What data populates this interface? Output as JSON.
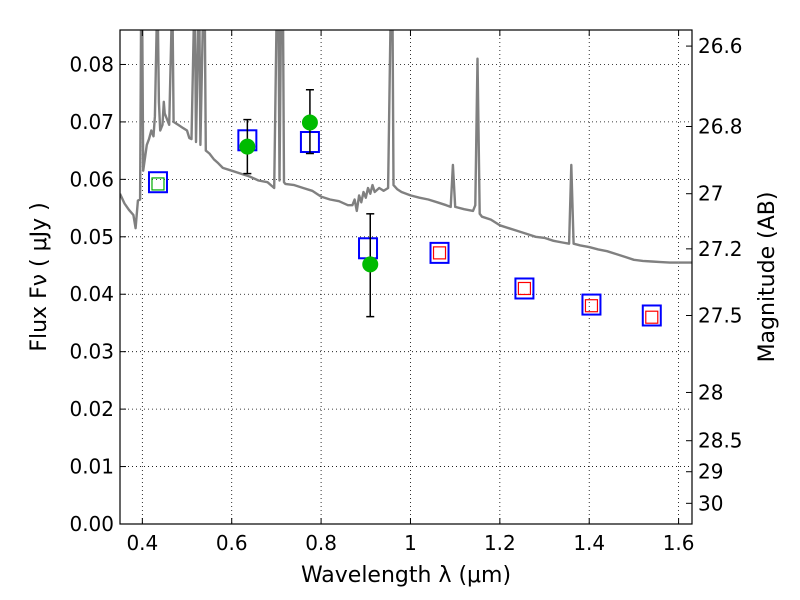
{
  "chart_data": {
    "type": "scatter",
    "xlabel": "Wavelength  λ (μm)",
    "ylabel": "Flux  Fν  ( μJy )",
    "y2label": "Magnitude (AB)",
    "xlim": [
      0.35,
      1.63
    ],
    "ylim": [
      0.0,
      0.086
    ],
    "grid": true,
    "x_ticks": [
      0.4,
      0.6,
      0.8,
      1.0,
      1.2,
      1.4,
      1.6
    ],
    "x_tick_labels": [
      "0.4",
      "0.6",
      "0.8",
      "1",
      "1.2",
      "1.4",
      "1.6"
    ],
    "y_ticks": [
      0.0,
      0.01,
      0.02,
      0.03,
      0.04,
      0.05,
      0.06,
      0.07,
      0.08
    ],
    "y_tick_labels": [
      "0.00",
      "0.01",
      "0.02",
      "0.03",
      "0.04",
      "0.05",
      "0.06",
      "0.07",
      "0.08"
    ],
    "y2_ticks": [
      {
        "label": "26.6",
        "flux": 0.0832
      },
      {
        "label": "26.8",
        "flux": 0.0692
      },
      {
        "label": "27",
        "flux": 0.0575
      },
      {
        "label": "27.2",
        "flux": 0.0479
      },
      {
        "label": "27.5",
        "flux": 0.0363
      },
      {
        "label": "28",
        "flux": 0.0229
      },
      {
        "label": "28.5",
        "flux": 0.0145
      },
      {
        "label": "29",
        "flux": 0.0091
      },
      {
        "label": "30",
        "flux": 0.0036
      }
    ],
    "series": [
      {
        "kind": "model_spectrum",
        "color": "#808080",
        "points": [
          [
            0.35,
            0.0575
          ],
          [
            0.36,
            0.0558
          ],
          [
            0.37,
            0.0547
          ],
          [
            0.38,
            0.0538
          ],
          [
            0.385,
            0.0515
          ],
          [
            0.39,
            0.0563
          ],
          [
            0.395,
            0.0565
          ],
          [
            0.397,
            0.086
          ],
          [
            0.4,
            0.086
          ],
          [
            0.402,
            0.0615
          ],
          [
            0.41,
            0.066
          ],
          [
            0.415,
            0.067
          ],
          [
            0.42,
            0.0685
          ],
          [
            0.425,
            0.0675
          ],
          [
            0.428,
            0.071
          ],
          [
            0.432,
            0.086
          ],
          [
            0.435,
            0.086
          ],
          [
            0.437,
            0.0735
          ],
          [
            0.44,
            0.0685
          ],
          [
            0.445,
            0.0695
          ],
          [
            0.448,
            0.0735
          ],
          [
            0.45,
            0.0715
          ],
          [
            0.455,
            0.0705
          ],
          [
            0.46,
            0.0695
          ],
          [
            0.465,
            0.086
          ],
          [
            0.468,
            0.086
          ],
          [
            0.47,
            0.07
          ],
          [
            0.48,
            0.0695
          ],
          [
            0.49,
            0.069
          ],
          [
            0.5,
            0.0685
          ],
          [
            0.505,
            0.0672
          ],
          [
            0.51,
            0.067
          ],
          [
            0.515,
            0.086
          ],
          [
            0.518,
            0.086
          ],
          [
            0.52,
            0.0665
          ],
          [
            0.525,
            0.086
          ],
          [
            0.528,
            0.086
          ],
          [
            0.53,
            0.066
          ],
          [
            0.535,
            0.086
          ],
          [
            0.54,
            0.086
          ],
          [
            0.542,
            0.065
          ],
          [
            0.55,
            0.0645
          ],
          [
            0.56,
            0.0635
          ],
          [
            0.57,
            0.0628
          ],
          [
            0.58,
            0.062
          ],
          [
            0.6,
            0.0615
          ],
          [
            0.62,
            0.061
          ],
          [
            0.64,
            0.0605
          ],
          [
            0.66,
            0.0598
          ],
          [
            0.68,
            0.0595
          ],
          [
            0.695,
            0.0585
          ],
          [
            0.7,
            0.086
          ],
          [
            0.705,
            0.086
          ],
          [
            0.707,
            0.0598
          ],
          [
            0.71,
            0.086
          ],
          [
            0.715,
            0.086
          ],
          [
            0.717,
            0.0595
          ],
          [
            0.72,
            0.0592
          ],
          [
            0.74,
            0.059
          ],
          [
            0.76,
            0.0585
          ],
          [
            0.78,
            0.058
          ],
          [
            0.8,
            0.057
          ],
          [
            0.82,
            0.0565
          ],
          [
            0.84,
            0.0562
          ],
          [
            0.86,
            0.0555
          ],
          [
            0.87,
            0.0555
          ],
          [
            0.875,
            0.0565
          ],
          [
            0.88,
            0.0545
          ],
          [
            0.885,
            0.0572
          ],
          [
            0.89,
            0.056
          ],
          [
            0.895,
            0.0578
          ],
          [
            0.9,
            0.0568
          ],
          [
            0.905,
            0.0585
          ],
          [
            0.91,
            0.0575
          ],
          [
            0.915,
            0.059
          ],
          [
            0.92,
            0.0578
          ],
          [
            0.93,
            0.0585
          ],
          [
            0.94,
            0.058
          ],
          [
            0.95,
            0.0585
          ],
          [
            0.955,
            0.086
          ],
          [
            0.96,
            0.086
          ],
          [
            0.962,
            0.059
          ],
          [
            0.97,
            0.0583
          ],
          [
            0.98,
            0.0578
          ],
          [
            1.0,
            0.0572
          ],
          [
            1.02,
            0.0568
          ],
          [
            1.04,
            0.0565
          ],
          [
            1.06,
            0.056
          ],
          [
            1.08,
            0.0555
          ],
          [
            1.09,
            0.0552
          ],
          [
            1.095,
            0.0625
          ],
          [
            1.1,
            0.0552
          ],
          [
            1.12,
            0.0548
          ],
          [
            1.14,
            0.0545
          ],
          [
            1.145,
            0.0555
          ],
          [
            1.15,
            0.081
          ],
          [
            1.155,
            0.054
          ],
          [
            1.16,
            0.0535
          ],
          [
            1.18,
            0.053
          ],
          [
            1.2,
            0.052
          ],
          [
            1.22,
            0.0515
          ],
          [
            1.24,
            0.051
          ],
          [
            1.26,
            0.0505
          ],
          [
            1.28,
            0.05
          ],
          [
            1.3,
            0.0498
          ],
          [
            1.32,
            0.0493
          ],
          [
            1.34,
            0.049
          ],
          [
            1.355,
            0.0488
          ],
          [
            1.36,
            0.0625
          ],
          [
            1.365,
            0.0488
          ],
          [
            1.38,
            0.0485
          ],
          [
            1.4,
            0.0482
          ],
          [
            1.42,
            0.0478
          ],
          [
            1.44,
            0.0475
          ],
          [
            1.46,
            0.047
          ],
          [
            1.48,
            0.0465
          ],
          [
            1.5,
            0.046
          ],
          [
            1.52,
            0.0458
          ],
          [
            1.54,
            0.0457
          ],
          [
            1.56,
            0.0456
          ],
          [
            1.58,
            0.0455
          ],
          [
            1.6,
            0.0455
          ],
          [
            1.63,
            0.0455
          ]
        ]
      },
      {
        "kind": "model_band_fluxes",
        "marker": "open-square",
        "color": "#0000ff",
        "x": [
          0.435,
          0.635,
          0.775,
          0.905,
          1.065,
          1.255,
          1.405,
          1.54
        ],
        "y": [
          0.0595,
          0.0668,
          0.0665,
          0.048,
          0.0472,
          0.041,
          0.0382,
          0.0363
        ]
      },
      {
        "kind": "inner_band_markers",
        "marker": "open-square",
        "x": [
          0.435,
          1.065,
          1.255,
          1.405,
          1.54
        ],
        "y": [
          0.0592,
          0.0472,
          0.041,
          0.038,
          0.036
        ],
        "colors": [
          "#00aa00",
          "#ff0000",
          "#ff0000",
          "#ff0000",
          "#ff0000"
        ]
      },
      {
        "kind": "measured_fluxes",
        "marker": "filled-circle",
        "color": "#00bb00",
        "x": [
          0.635,
          0.775,
          0.91
        ],
        "y": [
          0.0657,
          0.0699,
          0.0452
        ],
        "err_low": [
          0.0047,
          0.0054,
          0.0091
        ],
        "err_high": [
          0.0047,
          0.0057,
          0.0088
        ]
      }
    ]
  }
}
